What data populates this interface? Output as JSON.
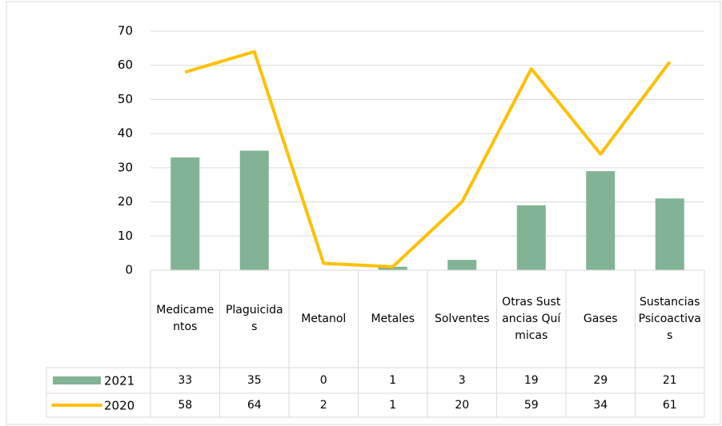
{
  "chart_data": {
    "type": "bar_line",
    "categories": [
      "Medicamentos",
      "Plaguicidas",
      "Metanol",
      "Metales",
      "Solventes",
      "Otras Sustancias Químicas",
      "Gases",
      "Sustancias Psicoactivas"
    ],
    "series": [
      {
        "name": "2021",
        "type": "bar",
        "color": "#82b394",
        "values": [
          33,
          35,
          0,
          1,
          3,
          19,
          29,
          21
        ]
      },
      {
        "name": "2020",
        "type": "line",
        "color": "#ffc000",
        "values": [
          58,
          64,
          2,
          1,
          20,
          59,
          34,
          61
        ]
      }
    ],
    "ylim": [
      0,
      70
    ],
    "yticks": [
      0,
      10,
      20,
      30,
      40,
      50,
      60,
      70
    ],
    "grid": true,
    "data_table": true
  }
}
